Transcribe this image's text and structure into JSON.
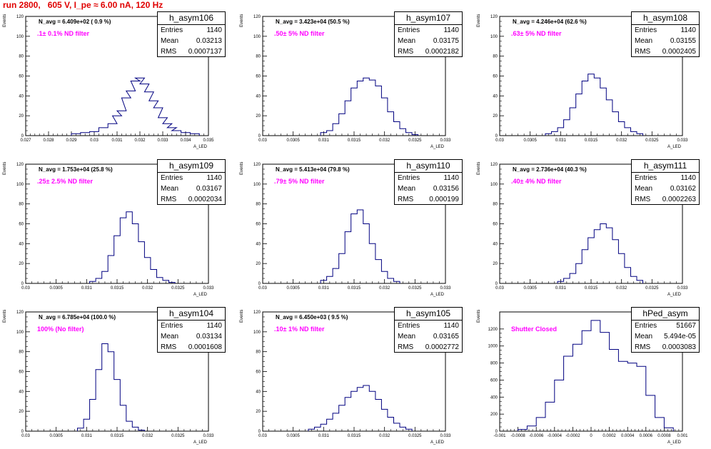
{
  "title": "run 2800,   605 V, I_pe ≈ 6.00 nA, 120 Hz",
  "colors": {
    "hist": "#000080",
    "filter_text": "#ff00ff",
    "title": "#e00000"
  },
  "chart_data": [
    {
      "type": "histogram",
      "name": "h_asym106",
      "n_avg": "N_avg = 6.409e+02 ( 0.9 %)",
      "filter": ".1± 0.1% ND filter",
      "stats": {
        "entries": "1140",
        "mean": "0.03213",
        "rms": "0.0007137"
      },
      "ylabel": "Events",
      "xlabel": "A_LED",
      "xlim": [
        0.027,
        0.035
      ],
      "ylim": [
        0,
        120
      ],
      "yticks": [
        0,
        20,
        40,
        60,
        80,
        100,
        120
      ],
      "xticks": [
        "0.027",
        "0.028",
        "0.029",
        "0.03",
        "0.031",
        "0.032",
        "0.033",
        "0.034",
        "0.035"
      ],
      "x": [
        0.0292,
        0.0296,
        0.03,
        0.0304,
        0.0308,
        0.031,
        0.0312,
        0.0314,
        0.0316,
        0.0318,
        0.032,
        0.0322,
        0.0324,
        0.0326,
        0.0328,
        0.033,
        0.0332,
        0.0334,
        0.0336,
        0.034,
        0.0344
      ],
      "counts": [
        2,
        3,
        4,
        8,
        12,
        20,
        25,
        38,
        45,
        55,
        58,
        52,
        44,
        35,
        28,
        18,
        12,
        8,
        5,
        3,
        2
      ]
    },
    {
      "type": "histogram",
      "name": "h_asym107",
      "n_avg": "N_avg = 3.423e+04 (50.5 %)",
      "filter": ".50± 5% ND filter",
      "stats": {
        "entries": "1140",
        "mean": "0.03175",
        "rms": "0.0002182"
      },
      "ylabel": "Events",
      "xlabel": "A_LED",
      "xlim": [
        0.03,
        0.033
      ],
      "ylim": [
        0,
        120
      ],
      "yticks": [
        0,
        20,
        40,
        60,
        80,
        100,
        120
      ],
      "xticks": [
        "0.03",
        "0.0305",
        "0.031",
        "0.0315",
        "0.032",
        "0.0325",
        "0.033"
      ],
      "x": [
        0.031,
        0.0311,
        0.0312,
        0.0313,
        0.0314,
        0.0315,
        0.0316,
        0.0317,
        0.0318,
        0.0319,
        0.032,
        0.0321,
        0.0322,
        0.0323,
        0.0324,
        0.0325
      ],
      "counts": [
        3,
        5,
        12,
        22,
        35,
        48,
        55,
        58,
        56,
        50,
        38,
        24,
        14,
        7,
        3,
        1
      ]
    },
    {
      "type": "histogram",
      "name": "h_asym108",
      "n_avg": "N_avg = 4.246e+04 (62.6 %)",
      "filter": ".63± 5% ND filter",
      "stats": {
        "entries": "1140",
        "mean": "0.03155",
        "rms": "0.0002405"
      },
      "ylabel": "Events",
      "xlabel": "A_LED",
      "xlim": [
        0.03,
        0.033
      ],
      "ylim": [
        0,
        120
      ],
      "yticks": [
        0,
        20,
        40,
        60,
        80,
        100,
        120
      ],
      "xticks": [
        "0.03",
        "0.0305",
        "0.031",
        "0.0315",
        "0.032",
        "0.0325",
        "0.033"
      ],
      "x": [
        0.0308,
        0.0309,
        0.031,
        0.0311,
        0.0312,
        0.0313,
        0.0314,
        0.0315,
        0.0316,
        0.0317,
        0.0318,
        0.0319,
        0.032,
        0.0321,
        0.0322,
        0.0323
      ],
      "counts": [
        2,
        4,
        8,
        16,
        28,
        42,
        55,
        62,
        58,
        48,
        36,
        24,
        14,
        8,
        4,
        2
      ]
    },
    {
      "type": "histogram",
      "name": "h_asym109",
      "n_avg": "N_avg = 1.753e+04 (25.8 %)",
      "filter": ".25± 2.5% ND filter",
      "stats": {
        "entries": "1140",
        "mean": "0.03167",
        "rms": "0.0002034"
      },
      "ylabel": "Events",
      "xlabel": "A_LED",
      "xlim": [
        0.03,
        0.033
      ],
      "ylim": [
        0,
        120
      ],
      "yticks": [
        0,
        20,
        40,
        60,
        80,
        100,
        120
      ],
      "xticks": [
        "0.03",
        "0.0305",
        "0.031",
        "0.0315",
        "0.032",
        "0.0325",
        "0.033"
      ],
      "x": [
        0.0311,
        0.0312,
        0.0313,
        0.0314,
        0.0315,
        0.0316,
        0.0317,
        0.0318,
        0.0319,
        0.032,
        0.0321,
        0.0322,
        0.0323,
        0.0324
      ],
      "counts": [
        2,
        5,
        12,
        28,
        48,
        66,
        72,
        60,
        42,
        26,
        14,
        6,
        3,
        1
      ]
    },
    {
      "type": "histogram",
      "name": "h_asym110",
      "n_avg": "N_avg = 5.413e+04 (79.8 %)",
      "filter": ".79± 5% ND filter",
      "stats": {
        "entries": "1140",
        "mean": "0.03156",
        "rms": "0.000199"
      },
      "ylabel": "Events",
      "xlabel": "A_LED",
      "xlim": [
        0.03,
        0.033
      ],
      "ylim": [
        0,
        120
      ],
      "yticks": [
        0,
        20,
        40,
        60,
        80,
        100,
        120
      ],
      "xticks": [
        "0.03",
        "0.0305",
        "0.031",
        "0.0315",
        "0.032",
        "0.0325",
        "0.033"
      ],
      "x": [
        0.031,
        0.0311,
        0.0312,
        0.0313,
        0.0314,
        0.0315,
        0.0316,
        0.0317,
        0.0318,
        0.0319,
        0.032,
        0.0321,
        0.0322
      ],
      "counts": [
        3,
        7,
        15,
        30,
        52,
        70,
        74,
        60,
        40,
        24,
        12,
        5,
        2
      ]
    },
    {
      "type": "histogram",
      "name": "h_asym111",
      "n_avg": "N_avg = 2.736e+04 (40.3 %)",
      "filter": ".40± 4% ND filter",
      "stats": {
        "entries": "1140",
        "mean": "0.03162",
        "rms": "0.0002263"
      },
      "ylabel": "Events",
      "xlabel": "A_LED",
      "xlim": [
        0.03,
        0.033
      ],
      "ylim": [
        0,
        120
      ],
      "yticks": [
        0,
        20,
        40,
        60,
        80,
        100,
        120
      ],
      "xticks": [
        "0.03",
        "0.0305",
        "0.031",
        "0.0315",
        "0.032",
        "0.0325",
        "0.033"
      ],
      "x": [
        0.031,
        0.0311,
        0.0312,
        0.0313,
        0.0314,
        0.0315,
        0.0316,
        0.0317,
        0.0318,
        0.0319,
        0.032,
        0.0321,
        0.0322,
        0.0323
      ],
      "counts": [
        2,
        5,
        10,
        20,
        34,
        46,
        54,
        60,
        56,
        44,
        30,
        16,
        7,
        3
      ]
    },
    {
      "type": "histogram",
      "name": "h_asym104",
      "n_avg": "N_avg = 6.785e+04 (100.0 %)",
      "filter": "100% (No filter)",
      "stats": {
        "entries": "1140",
        "mean": "0.03134",
        "rms": "0.0001608"
      },
      "ylabel": "Events",
      "xlabel": "A_LED",
      "xlim": [
        0.03,
        0.033
      ],
      "ylim": [
        0,
        120
      ],
      "yticks": [
        0,
        20,
        40,
        60,
        80,
        100,
        120
      ],
      "xticks": [
        "0.03",
        "0.0305",
        "0.031",
        "0.0315",
        "0.032",
        "0.0325",
        "0.033"
      ],
      "x": [
        0.0309,
        0.031,
        0.0311,
        0.0312,
        0.0313,
        0.0314,
        0.0315,
        0.0316,
        0.0317,
        0.0318,
        0.0319
      ],
      "counts": [
        3,
        12,
        32,
        62,
        88,
        80,
        52,
        26,
        10,
        4,
        1
      ]
    },
    {
      "type": "histogram",
      "name": "h_asym105",
      "n_avg": "N_avg = 6.450e+03 ( 9.5 %)",
      "filter": ".10± 1% ND filter",
      "stats": {
        "entries": "1140",
        "mean": "0.03165",
        "rms": "0.0002772"
      },
      "ylabel": "Events",
      "xlabel": "A_LED",
      "xlim": [
        0.03,
        0.033
      ],
      "ylim": [
        0,
        120
      ],
      "yticks": [
        0,
        20,
        40,
        60,
        80,
        100,
        120
      ],
      "xticks": [
        "0.03",
        "0.0305",
        "0.031",
        "0.0315",
        "0.032",
        "0.0325",
        "0.033"
      ],
      "x": [
        0.0308,
        0.0309,
        0.031,
        0.0311,
        0.0312,
        0.0313,
        0.0314,
        0.0315,
        0.0316,
        0.0317,
        0.0318,
        0.0319,
        0.032,
        0.0321,
        0.0322,
        0.0323,
        0.0324
      ],
      "counts": [
        2,
        4,
        7,
        12,
        18,
        26,
        34,
        40,
        44,
        46,
        40,
        32,
        22,
        14,
        8,
        4,
        2
      ]
    },
    {
      "type": "histogram",
      "name": "hPed_asym",
      "n_avg": "",
      "filter": "Shutter Closed",
      "stats": {
        "entries": "51667",
        "mean": "5.494e-05",
        "rms": "0.0003083"
      },
      "ylabel": "Events",
      "xlabel": "A_LED",
      "xlim": [
        -0.001,
        0.001
      ],
      "ylim": [
        0,
        1400
      ],
      "yticks": [
        0,
        200,
        400,
        600,
        800,
        1000,
        1200
      ],
      "xticks": [
        "-0.001",
        "-0.0008",
        "-0.0006",
        "-0.0004",
        "-0.0002",
        "0",
        "0.0002",
        "0.0004",
        "0.0006",
        "0.0008",
        "0.001"
      ],
      "x": [
        -0.00075,
        -0.00065,
        -0.00055,
        -0.00045,
        -0.00035,
        -0.00025,
        -0.00015,
        -5e-05,
        5e-05,
        0.00015,
        0.00025,
        0.00035,
        0.00045,
        0.00055,
        0.00065,
        0.00075,
        0.00085
      ],
      "counts": [
        20,
        60,
        160,
        340,
        600,
        880,
        1020,
        1180,
        1300,
        1160,
        960,
        820,
        800,
        760,
        420,
        160,
        40
      ]
    }
  ]
}
